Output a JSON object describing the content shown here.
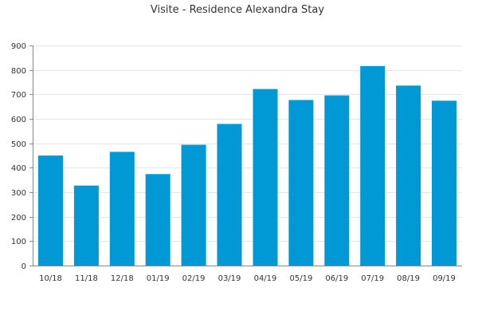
{
  "chart_data": {
    "type": "bar",
    "title": "Visite - Residence Alexandra Stay",
    "xlabel": "",
    "ylabel": "",
    "categories": [
      "10/18",
      "11/18",
      "12/18",
      "01/19",
      "02/19",
      "03/19",
      "04/19",
      "05/19",
      "06/19",
      "07/19",
      "08/19",
      "09/19"
    ],
    "series": [
      {
        "values": [
          450,
          327,
          465,
          374,
          494,
          579,
          722,
          677,
          696,
          816,
          736,
          674
        ]
      }
    ],
    "ylim": [
      0,
      900
    ],
    "yticks": [
      0,
      100,
      200,
      300,
      400,
      500,
      600,
      700,
      800,
      900
    ],
    "grid": true,
    "legend": "none",
    "colors": {
      "bar": "#0099d6",
      "grid": "#e6e6e6",
      "axis": "#888888",
      "text": "#333333"
    }
  }
}
